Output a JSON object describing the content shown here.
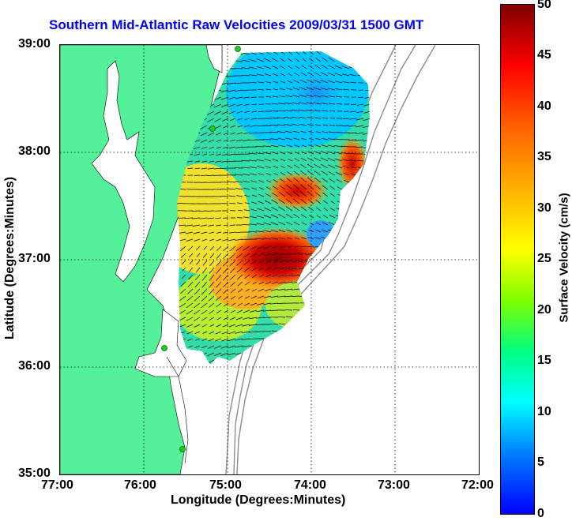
{
  "title": "Southern Mid-Atlantic Raw Velocities 2009/03/31 1500 GMT",
  "x_axis": {
    "label": "Longitude (Degrees:Minutes)",
    "ticks": [
      "77:00",
      "76:00",
      "75:00",
      "74:00",
      "73:00",
      "72:00"
    ]
  },
  "y_axis": {
    "label": "Latitude (Degrees:Minutes)",
    "ticks": [
      "39:00",
      "38:00",
      "37:00",
      "36:00",
      "35:00"
    ]
  },
  "colorbar": {
    "label": "Surface Velocity (cm/s)",
    "ticks": [
      "50",
      "45",
      "40",
      "35",
      "30",
      "25",
      "20",
      "15",
      "10",
      "5",
      "0"
    ],
    "min": 0,
    "max": 50
  },
  "colors": {
    "land": "#55f09a",
    "title": "#0000ff",
    "stations": "#22cc22"
  }
}
